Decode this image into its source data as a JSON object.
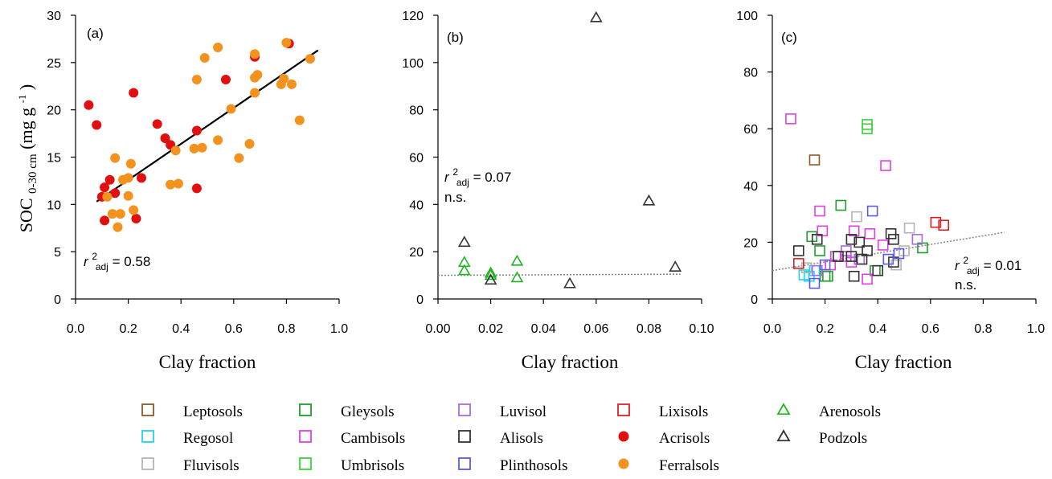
{
  "colors": {
    "Leptosols": "#8B5A2B",
    "Regosol": "#22D3EE",
    "Fluvisols": "#B5B5B5",
    "Gleysols": "#1F9E2C",
    "Cambisols": "#E040E0",
    "Umbrisols": "#3BD23B",
    "Luvisol": "#A66BE0",
    "Alisols": "#333333",
    "Plinthosols": "#5B5BE0",
    "Lixisols": "#E02020",
    "Acrisols": "#E01010",
    "Ferralsols": "#F4921E",
    "Arenosols": "#22B422",
    "Podzols": "#333333",
    "fit": "#000000",
    "fit_ns": "#888888"
  },
  "legend": {
    "items": [
      {
        "label": "Leptosols",
        "marker": "square"
      },
      {
        "label": "Regosol",
        "marker": "square"
      },
      {
        "label": "Fluvisols",
        "marker": "square"
      },
      {
        "label": "Gleysols",
        "marker": "square"
      },
      {
        "label": "Cambisols",
        "marker": "square"
      },
      {
        "label": "Umbrisols",
        "marker": "square"
      },
      {
        "label": "Luvisol",
        "marker": "square"
      },
      {
        "label": "Alisols",
        "marker": "square"
      },
      {
        "label": "Plinthosols",
        "marker": "square"
      },
      {
        "label": "Lixisols",
        "marker": "square"
      },
      {
        "label": "Acrisols",
        "marker": "circle"
      },
      {
        "label": "Ferralsols",
        "marker": "circle"
      },
      {
        "label": "Arenosols",
        "marker": "triangle"
      },
      {
        "label": "Podzols",
        "marker": "triangle"
      }
    ]
  },
  "chart_data": [
    {
      "type": "scatter",
      "panel_label": "(a)",
      "xlabel": "Clay fraction",
      "ylabel_main": "SOC",
      "ylabel_sub": "0-30 cm",
      "ylabel_unit": "(mg g",
      "ylabel_unit_sup": "-1",
      "ylabel_unit_close": ")",
      "xlim": [
        0,
        1.0
      ],
      "ylim": [
        0,
        30
      ],
      "xticks": [
        0,
        0.2,
        0.4,
        0.6,
        0.8,
        1.0
      ],
      "xtick_labels": [
        "0.0",
        "0.2",
        "0.4",
        "0.6",
        "0.8",
        "1.0"
      ],
      "yticks": [
        0,
        5,
        10,
        15,
        20,
        25,
        30
      ],
      "ytick_labels": [
        "0",
        "5",
        "10",
        "15",
        "20",
        "25",
        "30"
      ],
      "annotation": {
        "r": "r",
        "sup": "2",
        "sub": "adj",
        "text": " = 0.58",
        "ns": ""
      },
      "fit": {
        "x": [
          0.08,
          0.92
        ],
        "y": [
          10.3,
          26.3
        ],
        "style": "solid"
      },
      "series": [
        {
          "name": "Acrisols",
          "marker": "circle",
          "points": [
            [
              0.05,
              20.5
            ],
            [
              0.08,
              18.4
            ],
            [
              0.1,
              10.8
            ],
            [
              0.11,
              11.8
            ],
            [
              0.11,
              8.3
            ],
            [
              0.13,
              12.6
            ],
            [
              0.15,
              11.2
            ],
            [
              0.22,
              21.8
            ],
            [
              0.23,
              8.5
            ],
            [
              0.25,
              12.8
            ],
            [
              0.31,
              18.5
            ],
            [
              0.34,
              17.0
            ],
            [
              0.36,
              16.3
            ],
            [
              0.46,
              17.8
            ],
            [
              0.46,
              11.7
            ],
            [
              0.57,
              23.2
            ],
            [
              0.68,
              25.6
            ],
            [
              0.81,
              27.0
            ]
          ]
        },
        {
          "name": "Ferralsols",
          "marker": "circle",
          "points": [
            [
              0.12,
              10.8
            ],
            [
              0.14,
              9.0
            ],
            [
              0.15,
              14.9
            ],
            [
              0.16,
              7.6
            ],
            [
              0.17,
              9.0
            ],
            [
              0.18,
              12.6
            ],
            [
              0.2,
              10.9
            ],
            [
              0.2,
              12.8
            ],
            [
              0.21,
              14.3
            ],
            [
              0.22,
              9.4
            ],
            [
              0.38,
              15.7
            ],
            [
              0.36,
              12.1
            ],
            [
              0.39,
              12.2
            ],
            [
              0.45,
              15.9
            ],
            [
              0.48,
              16.0
            ],
            [
              0.46,
              23.2
            ],
            [
              0.49,
              25.5
            ],
            [
              0.54,
              26.6
            ],
            [
              0.54,
              16.8
            ],
            [
              0.59,
              20.1
            ],
            [
              0.62,
              14.9
            ],
            [
              0.66,
              16.4
            ],
            [
              0.68,
              21.8
            ],
            [
              0.68,
              25.9
            ],
            [
              0.68,
              23.4
            ],
            [
              0.69,
              23.7
            ],
            [
              0.78,
              22.7
            ],
            [
              0.79,
              23.3
            ],
            [
              0.8,
              27.1
            ],
            [
              0.82,
              22.7
            ],
            [
              0.85,
              18.9
            ],
            [
              0.89,
              25.4
            ]
          ]
        }
      ]
    },
    {
      "type": "scatter",
      "panel_label": "(b)",
      "xlabel": "Clay fraction",
      "xlim": [
        0,
        0.1
      ],
      "ylim": [
        0,
        120
      ],
      "xticks": [
        0,
        0.02,
        0.04,
        0.06,
        0.08,
        0.1
      ],
      "xtick_labels": [
        "0.00",
        "0.02",
        "0.04",
        "0.06",
        "0.08",
        "0.10"
      ],
      "yticks": [
        0,
        20,
        40,
        60,
        80,
        100,
        120
      ],
      "ytick_labels": [
        "0",
        "20",
        "40",
        "60",
        "80",
        "100",
        "120"
      ],
      "annotation": {
        "r": "r",
        "sup": "2",
        "sub": "adj",
        "text": " = 0.07",
        "ns": "n.s."
      },
      "fit": {
        "x": [
          0.0,
          0.092
        ],
        "y": [
          10.0,
          10.5
        ],
        "style": "dotted"
      },
      "series": [
        {
          "name": "Arenosols",
          "marker": "triangle",
          "points": [
            [
              0.01,
              15.5
            ],
            [
              0.01,
              12.0
            ],
            [
              0.02,
              11.0
            ],
            [
              0.02,
              10.0
            ],
            [
              0.03,
              16.0
            ],
            [
              0.03,
              9.0
            ]
          ]
        },
        {
          "name": "Podzols",
          "marker": "triangle",
          "points": [
            [
              0.01,
              24.0
            ],
            [
              0.02,
              8.0
            ],
            [
              0.05,
              6.5
            ],
            [
              0.06,
              119.0
            ],
            [
              0.08,
              41.5
            ],
            [
              0.09,
              13.5
            ]
          ]
        }
      ]
    },
    {
      "type": "scatter",
      "panel_label": "(c)",
      "xlabel": "Clay fraction",
      "xlim": [
        0,
        1.0
      ],
      "ylim": [
        0,
        100
      ],
      "xticks": [
        0,
        0.2,
        0.4,
        0.6,
        0.8,
        1.0
      ],
      "xtick_labels": [
        "0.0",
        "0.2",
        "0.4",
        "0.6",
        "0.8",
        "1.0"
      ],
      "yticks": [
        0,
        20,
        40,
        60,
        80,
        100
      ],
      "ytick_labels": [
        "0",
        "20",
        "40",
        "60",
        "80",
        "100"
      ],
      "annotation": {
        "r": "r",
        "sup": "2",
        "sub": "adj",
        "text": " = 0.01",
        "ns": "n.s."
      },
      "fit": {
        "x": [
          0.0,
          0.88
        ],
        "y": [
          10.0,
          23.5
        ],
        "style": "dotted"
      },
      "series": [
        {
          "name": "Leptosols",
          "marker": "square",
          "points": [
            [
              0.16,
              49.0
            ]
          ]
        },
        {
          "name": "Regosol",
          "marker": "square",
          "points": [
            [
              0.12,
              8.5
            ],
            [
              0.16,
              10.0
            ],
            [
              0.14,
              8.0
            ]
          ]
        },
        {
          "name": "Fluvisols",
          "marker": "square",
          "points": [
            [
              0.32,
              29.0
            ],
            [
              0.47,
              12.0
            ],
            [
              0.52,
              25.0
            ],
            [
              0.5,
              17.0
            ],
            [
              0.13,
              11.0
            ]
          ]
        },
        {
          "name": "Gleysols",
          "marker": "square",
          "points": [
            [
              0.26,
              33.0
            ],
            [
              0.15,
              22.0
            ],
            [
              0.18,
              17.0
            ],
            [
              0.21,
              8.0
            ],
            [
              0.39,
              10.0
            ],
            [
              0.57,
              18.0
            ],
            [
              0.2,
              8.0
            ]
          ]
        },
        {
          "name": "Cambisols",
          "marker": "square",
          "points": [
            [
              0.07,
              63.5
            ],
            [
              0.43,
              47.0
            ],
            [
              0.18,
              31.0
            ],
            [
              0.19,
              24.0
            ],
            [
              0.31,
              24.0
            ],
            [
              0.36,
              7.0
            ],
            [
              0.28,
              15.0
            ],
            [
              0.3,
              13.0
            ],
            [
              0.22,
              12.0
            ],
            [
              0.42,
              19.0
            ],
            [
              0.24,
              15.0
            ],
            [
              0.37,
              23.0
            ]
          ]
        },
        {
          "name": "Umbrisols",
          "marker": "square",
          "points": [
            [
              0.36,
              61.5
            ],
            [
              0.36,
              60.0
            ]
          ]
        },
        {
          "name": "Luvisol",
          "marker": "square",
          "points": [
            [
              0.55,
              21.0
            ],
            [
              0.17,
              10.0
            ],
            [
              0.28,
              17.0
            ],
            [
              0.33,
              14.0
            ]
          ]
        },
        {
          "name": "Alisols",
          "marker": "square",
          "points": [
            [
              0.1,
              17.0
            ],
            [
              0.17,
              21.0
            ],
            [
              0.25,
              15.0
            ],
            [
              0.3,
              21.0
            ],
            [
              0.3,
              15.0
            ],
            [
              0.33,
              20.0
            ],
            [
              0.34,
              14.0
            ],
            [
              0.36,
              17.0
            ],
            [
              0.4,
              10.0
            ],
            [
              0.45,
              23.0
            ],
            [
              0.46,
              21.0
            ],
            [
              0.46,
              13.0
            ],
            [
              0.31,
              8.0
            ]
          ]
        },
        {
          "name": "Plinthosols",
          "marker": "square",
          "points": [
            [
              0.38,
              31.0
            ],
            [
              0.16,
              5.5
            ],
            [
              0.48,
              16.0
            ],
            [
              0.44,
              14.0
            ],
            [
              0.2,
              12.0
            ]
          ]
        },
        {
          "name": "Lixisols",
          "marker": "square",
          "points": [
            [
              0.62,
              27.0
            ],
            [
              0.65,
              26.0
            ],
            [
              0.1,
              12.5
            ]
          ]
        }
      ]
    }
  ]
}
